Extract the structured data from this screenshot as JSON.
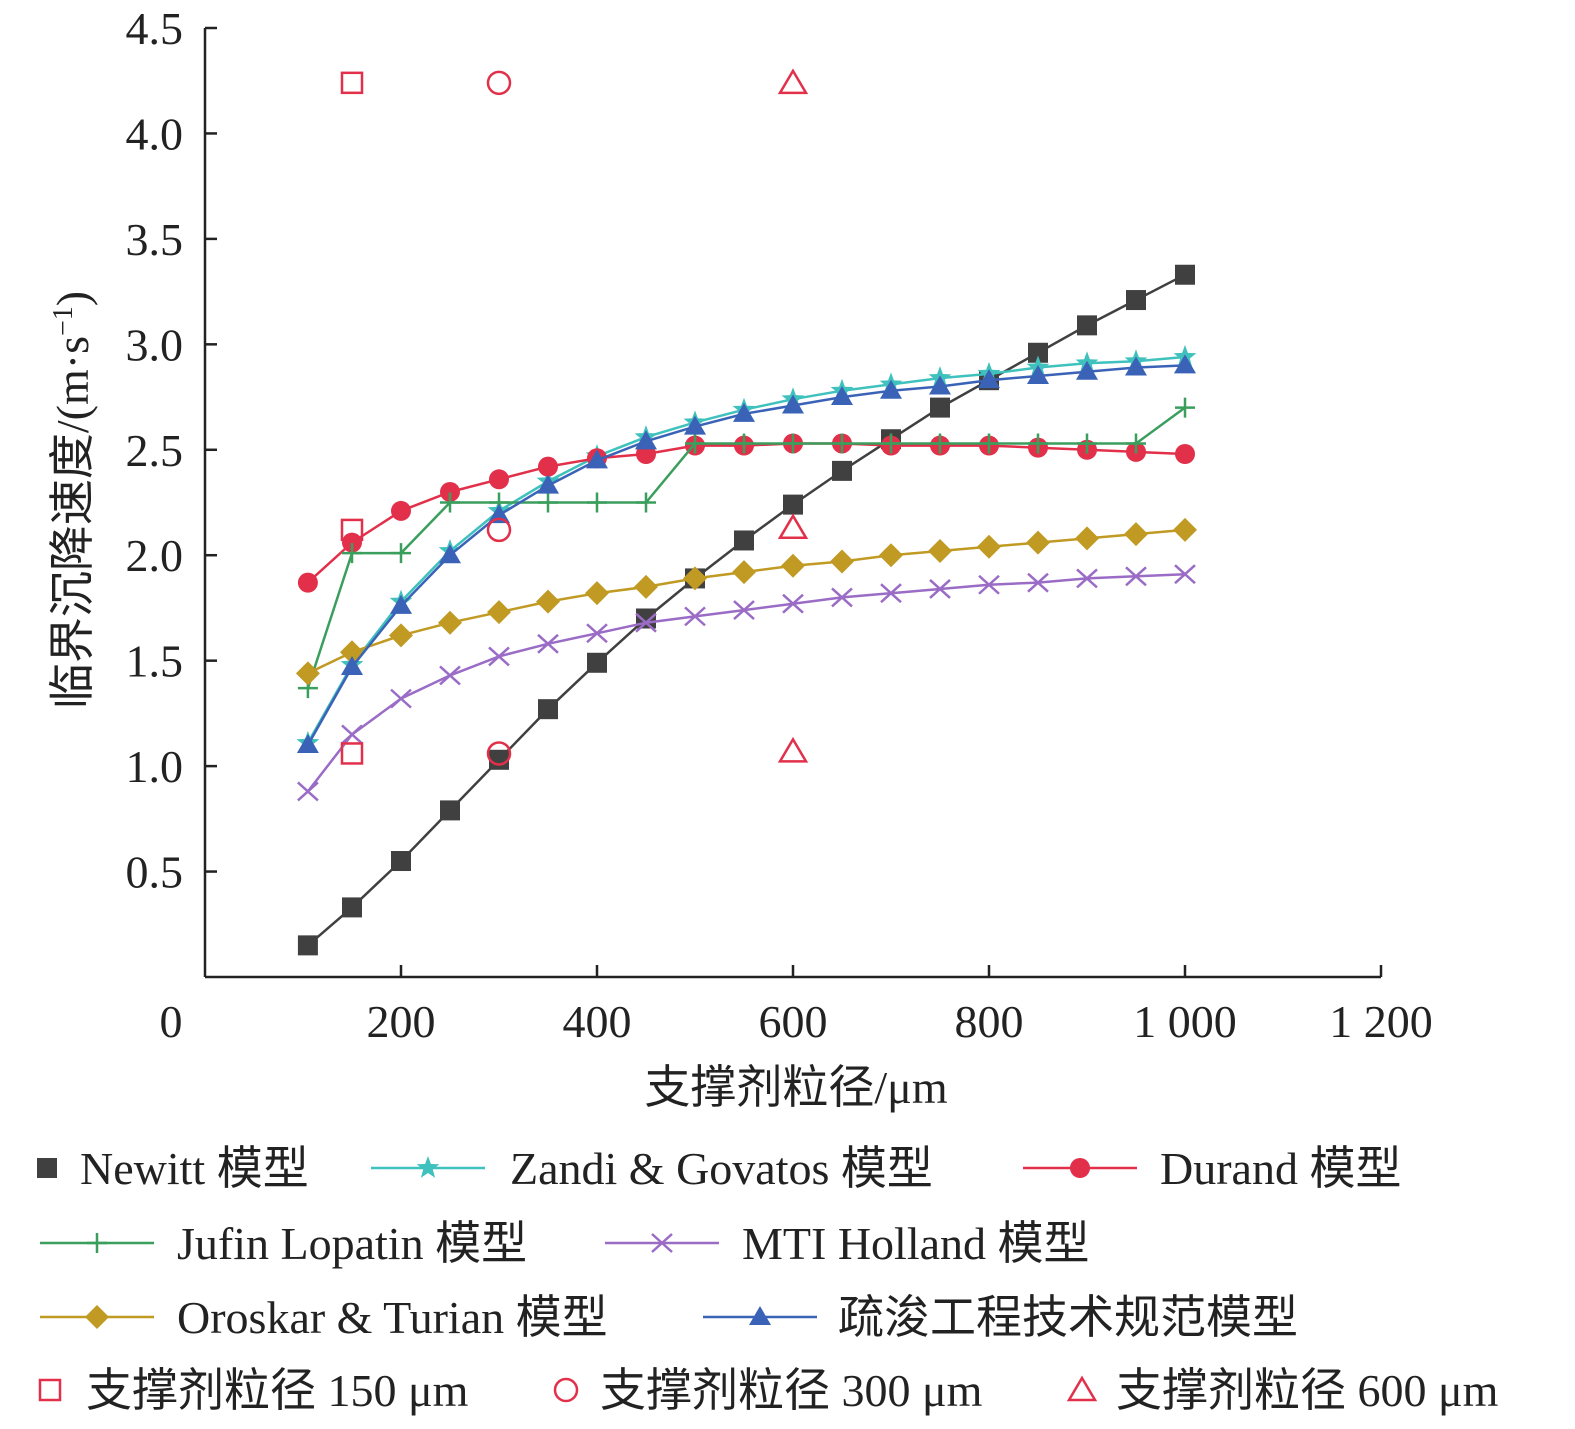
{
  "chart_data": {
    "type": "line",
    "xlabel": "支撑剂粒径/μm",
    "ylabel": "临界沉降速度/(m·s⁻¹)",
    "ylabel_main": "临界沉降速度/(m·s",
    "ylabel_sup": "−1",
    "ylabel_close": ")",
    "xlim": [
      0,
      1200
    ],
    "ylim": [
      0,
      4.5
    ],
    "x_ticks": [
      0,
      200,
      400,
      600,
      800,
      1000,
      1200
    ],
    "x_tick_labels": [
      "0",
      "200",
      "400",
      "600",
      "800",
      "1 000",
      "1 200"
    ],
    "y_ticks": [
      0.5,
      1.0,
      1.5,
      2.0,
      2.5,
      3.0,
      3.5,
      4.0,
      4.5
    ],
    "y_tick_labels": [
      "0.5",
      "1.0",
      "1.5",
      "2.0",
      "2.5",
      "3.0",
      "3.5",
      "4.0",
      "4.5"
    ],
    "grid": false,
    "legend_position": "bottom",
    "series": [
      {
        "name": "Newitt 模型",
        "key": "newitt",
        "color": "#404040",
        "marker": "square",
        "show_line_in_legend": false,
        "x": [
          105,
          150,
          200,
          250,
          300,
          350,
          400,
          450,
          500,
          550,
          600,
          650,
          700,
          750,
          800,
          850,
          900,
          950,
          1000
        ],
        "y": [
          0.15,
          0.33,
          0.55,
          0.79,
          1.03,
          1.27,
          1.49,
          1.7,
          1.89,
          2.07,
          2.24,
          2.4,
          2.55,
          2.7,
          2.83,
          2.96,
          3.09,
          3.21,
          3.33
        ]
      },
      {
        "name": "Zandi & Govatos 模型",
        "key": "zandi",
        "color": "#3fc1bd",
        "marker": "star",
        "show_line_in_legend": true,
        "x": [
          105,
          150,
          200,
          250,
          300,
          350,
          400,
          450,
          500,
          550,
          600,
          650,
          700,
          750,
          800,
          850,
          900,
          950,
          1000
        ],
        "y": [
          1.11,
          1.48,
          1.78,
          2.02,
          2.21,
          2.35,
          2.47,
          2.56,
          2.63,
          2.69,
          2.74,
          2.78,
          2.81,
          2.84,
          2.86,
          2.89,
          2.91,
          2.92,
          2.94
        ]
      },
      {
        "name": "Durand 模型",
        "key": "durand",
        "color": "#e2304a",
        "marker": "circle",
        "show_line_in_legend": true,
        "x": [
          105,
          150,
          200,
          250,
          300,
          350,
          400,
          450,
          500,
          550,
          600,
          650,
          700,
          750,
          800,
          850,
          900,
          950,
          1000
        ],
        "y": [
          1.87,
          2.06,
          2.21,
          2.3,
          2.36,
          2.42,
          2.46,
          2.48,
          2.52,
          2.52,
          2.53,
          2.53,
          2.52,
          2.52,
          2.52,
          2.51,
          2.5,
          2.49,
          2.48
        ]
      },
      {
        "name": "Jufin Lopatin 模型",
        "key": "jufin",
        "color": "#3a9e5c",
        "marker": "plus",
        "show_line_in_legend": true,
        "x": [
          105,
          150,
          200,
          250,
          300,
          350,
          400,
          450,
          500,
          550,
          600,
          650,
          700,
          750,
          800,
          850,
          900,
          950,
          1000
        ],
        "y": [
          1.37,
          2.01,
          2.01,
          2.25,
          2.25,
          2.25,
          2.25,
          2.25,
          2.53,
          2.53,
          2.53,
          2.53,
          2.53,
          2.53,
          2.53,
          2.53,
          2.53,
          2.53,
          2.7
        ]
      },
      {
        "name": "MTI Holland 模型",
        "key": "mti",
        "color": "#9a6cc6",
        "marker": "cross",
        "show_line_in_legend": true,
        "x": [
          105,
          150,
          200,
          250,
          300,
          350,
          400,
          450,
          500,
          550,
          600,
          650,
          700,
          750,
          800,
          850,
          900,
          950,
          1000
        ],
        "y": [
          0.88,
          1.15,
          1.32,
          1.43,
          1.52,
          1.58,
          1.63,
          1.68,
          1.71,
          1.74,
          1.77,
          1.8,
          1.82,
          1.84,
          1.86,
          1.87,
          1.89,
          1.9,
          1.91
        ]
      },
      {
        "name": "Oroskar & Turian 模型",
        "key": "oroskar",
        "color": "#c09a22",
        "marker": "diamond",
        "show_line_in_legend": true,
        "x": [
          105,
          150,
          200,
          250,
          300,
          350,
          400,
          450,
          500,
          550,
          600,
          650,
          700,
          750,
          800,
          850,
          900,
          950,
          1000
        ],
        "y": [
          1.44,
          1.54,
          1.62,
          1.68,
          1.73,
          1.78,
          1.82,
          1.85,
          1.89,
          1.92,
          1.95,
          1.97,
          2.0,
          2.02,
          2.04,
          2.06,
          2.08,
          2.1,
          2.12
        ]
      },
      {
        "name": "疏浚工程技术规范模型",
        "key": "dredge",
        "color": "#3a63b8",
        "marker": "triangle",
        "show_line_in_legend": true,
        "x": [
          105,
          150,
          200,
          250,
          300,
          350,
          400,
          450,
          500,
          550,
          600,
          650,
          700,
          750,
          800,
          850,
          900,
          950,
          1000
        ],
        "y": [
          1.1,
          1.47,
          1.76,
          2.0,
          2.19,
          2.33,
          2.45,
          2.54,
          2.61,
          2.67,
          2.71,
          2.75,
          2.78,
          2.8,
          2.83,
          2.85,
          2.87,
          2.89,
          2.9
        ]
      }
    ],
    "reference_points": [
      {
        "name": "支撑剂粒径 150 μm",
        "key": "p150",
        "color": "#e2304a",
        "marker": "open-square",
        "x": [
          150,
          150,
          150
        ],
        "y": [
          4.24,
          2.12,
          1.06
        ]
      },
      {
        "name": "支撑剂粒径 300 μm",
        "key": "p300",
        "color": "#e2304a",
        "marker": "open-circle",
        "x": [
          300,
          300,
          300
        ],
        "y": [
          4.24,
          2.12,
          1.06
        ]
      },
      {
        "name": "支撑剂粒径 600 μm",
        "key": "p600",
        "color": "#e2304a",
        "marker": "open-triangle",
        "x": [
          600,
          600,
          600
        ],
        "y": [
          4.24,
          2.13,
          1.07
        ]
      }
    ]
  }
}
